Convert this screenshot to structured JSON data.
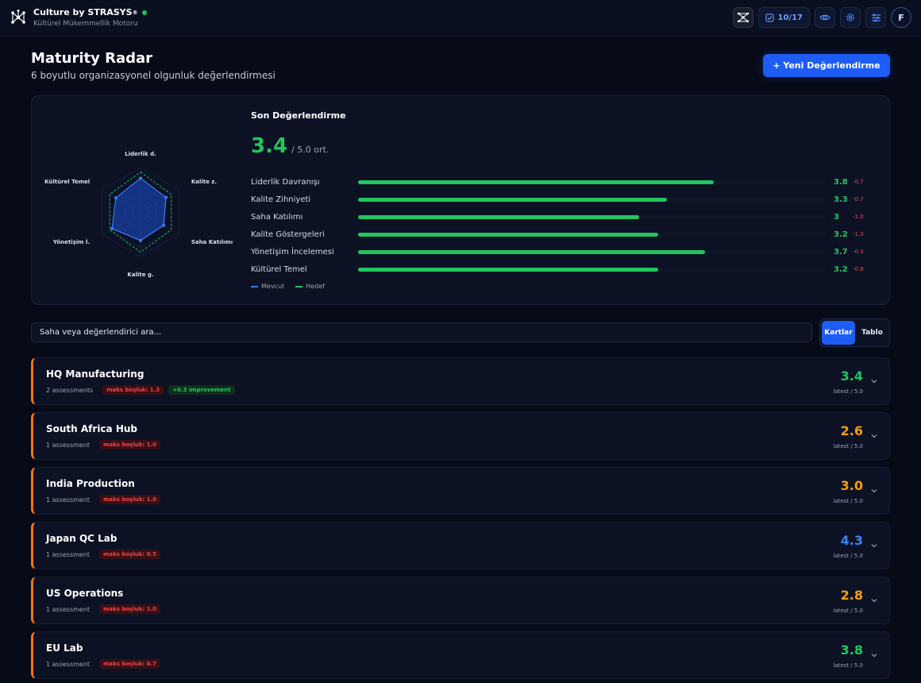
{
  "app": {
    "title": "Culture by STRASYS",
    "title_mark": "®",
    "subtitle": "Kültürel Mükemmellik Motoru"
  },
  "toolbar": {
    "counter": "10/17",
    "avatar_initial": "F"
  },
  "header": {
    "title": "Maturity Radar",
    "subtitle": "6 boyutlu organizasyonel olgunluk değerlendirmesi",
    "new_button": "+ Yeni Değerlendirme"
  },
  "summary": {
    "title": "Son Değerlendirme",
    "score": "3.4",
    "score_suffix": "/ 5.0 ort.",
    "radar_labels": [
      "Liderlik d.",
      "Kalite z.",
      "Saha Katılımı",
      "Kalite g.",
      "Yönetişim İ.",
      "Kültürel Temel"
    ],
    "dimensions": [
      {
        "name": "Liderlik Davranışı",
        "value": 3.8,
        "label": "3.8",
        "delta": "-0.7"
      },
      {
        "name": "Kalite Zihniyeti",
        "value": 3.3,
        "label": "3.3",
        "delta": "-0.7"
      },
      {
        "name": "Saha Katılımı",
        "value": 3.0,
        "label": "3",
        "delta": "-1.0"
      },
      {
        "name": "Kalite Göstergeleri",
        "value": 3.2,
        "label": "3.2",
        "delta": "-1.3"
      },
      {
        "name": "Yönetişim İncelemesi",
        "value": 3.7,
        "label": "3.7",
        "delta": "-0.3"
      },
      {
        "name": "Kültürel Temel",
        "value": 3.2,
        "label": "3.2",
        "delta": "-0.8"
      }
    ],
    "target_values": [
      4.5,
      4.0,
      4.0,
      4.5,
      4.0,
      4.0
    ],
    "max_value": 5,
    "legend": {
      "current": "Mevcut",
      "target": "Hedef"
    }
  },
  "search": {
    "placeholder": "Saha veya değerlendirici ara..."
  },
  "view_toggle": {
    "cards": "Kartlar",
    "table": "Tablo"
  },
  "sites": [
    {
      "name": "HQ Manufacturing",
      "count": "2 assessments",
      "gap": "maks boşluk: 1.3",
      "improvement": "+0.3 improvement",
      "score": "3.4",
      "score_color": "#22c55e",
      "sub": "latest / 5.0"
    },
    {
      "name": "South Africa Hub",
      "count": "1 assessment",
      "gap": "maks boşluk: 1.0",
      "improvement": "",
      "score": "2.6",
      "score_color": "#f59e0b",
      "sub": "latest / 5.0"
    },
    {
      "name": "India Production",
      "count": "1 assessment",
      "gap": "maks boşluk: 1.0",
      "improvement": "",
      "score": "3.0",
      "score_color": "#f59e0b",
      "sub": "latest / 5.0"
    },
    {
      "name": "Japan QC Lab",
      "count": "1 assessment",
      "gap": "maks boşluk: 0.5",
      "improvement": "",
      "score": "4.3",
      "score_color": "#3b82f6",
      "sub": "latest / 5.0"
    },
    {
      "name": "US Operations",
      "count": "1 assessment",
      "gap": "maks boşluk: 1.0",
      "improvement": "",
      "score": "2.8",
      "score_color": "#f59e0b",
      "sub": "latest / 5.0"
    },
    {
      "name": "EU Lab",
      "count": "1 assessment",
      "gap": "maks boşluk: 0.7",
      "improvement": "",
      "score": "3.8",
      "score_color": "#22c55e",
      "sub": "latest / 5.0"
    }
  ],
  "colors": {
    "accent": "#1d5cf5",
    "success": "#22c55e",
    "warning": "#f59e0b",
    "danger": "#ef4444",
    "card_border": "#f97316"
  }
}
